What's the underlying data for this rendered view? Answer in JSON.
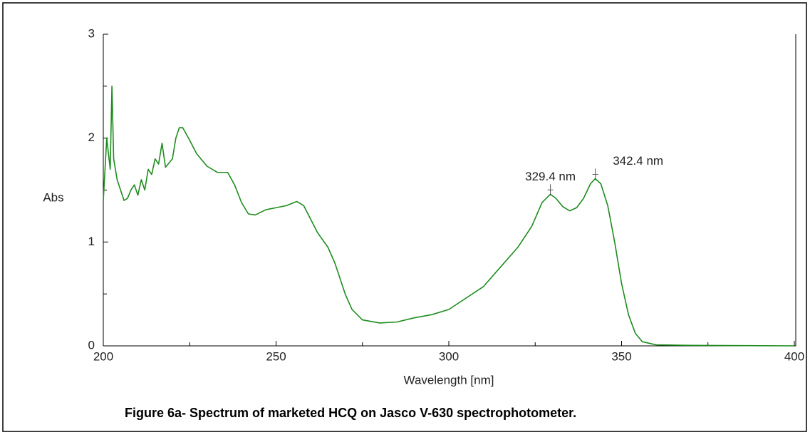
{
  "chart_data": {
    "type": "line",
    "caption": "Figure 6a- Spectrum of marketed HCQ on Jasco V-630 spectrophotometer.",
    "xlabel": "Wavelength [nm]",
    "ylabel": "Abs",
    "xlim": [
      200,
      400
    ],
    "xticks": [
      200,
      250,
      300,
      350,
      400
    ],
    "xminor_ticks": [
      225,
      275,
      325,
      375
    ],
    "ylim": [
      0,
      3
    ],
    "yticks": [
      0,
      1,
      2,
      3
    ],
    "yminor_ticks": [
      0.5,
      1.5,
      2.5
    ],
    "series": [
      {
        "color": "#1e8c1e",
        "x": [
          200,
          201,
          202,
          202.5,
          203,
          204,
          205,
          206,
          207,
          208,
          209,
          210,
          211,
          212,
          213,
          214,
          215,
          216,
          217,
          218,
          219,
          220,
          221,
          222,
          223,
          225,
          227,
          230,
          233,
          236,
          238,
          240,
          242,
          244,
          247,
          250,
          253,
          256,
          258,
          260,
          262,
          265,
          267,
          270,
          272,
          275,
          280,
          285,
          290,
          295,
          300,
          305,
          310,
          315,
          320,
          324,
          327,
          329.4,
          331,
          333,
          335,
          337,
          339,
          341,
          342.4,
          344,
          346,
          348,
          350,
          352,
          354,
          356,
          360,
          370,
          380,
          400
        ],
        "values": [
          1.4,
          2.0,
          1.7,
          2.5,
          1.8,
          1.6,
          1.5,
          1.4,
          1.42,
          1.5,
          1.55,
          1.45,
          1.6,
          1.5,
          1.7,
          1.65,
          1.8,
          1.75,
          1.95,
          1.72,
          1.76,
          1.8,
          2.0,
          2.1,
          2.1,
          1.98,
          1.85,
          1.73,
          1.67,
          1.67,
          1.55,
          1.38,
          1.27,
          1.26,
          1.31,
          1.33,
          1.35,
          1.39,
          1.35,
          1.22,
          1.09,
          0.95,
          0.8,
          0.5,
          0.35,
          0.25,
          0.22,
          0.23,
          0.27,
          0.3,
          0.35,
          0.46,
          0.57,
          0.76,
          0.95,
          1.15,
          1.38,
          1.46,
          1.42,
          1.34,
          1.3,
          1.33,
          1.42,
          1.56,
          1.61,
          1.56,
          1.35,
          1.0,
          0.6,
          0.3,
          0.12,
          0.04,
          0.01,
          0.005,
          0.003,
          0
        ]
      }
    ],
    "annotations": [
      {
        "text": "329.4 nm",
        "x": 329.4,
        "y": 1.46
      },
      {
        "text": "342.4 nm",
        "x": 342.4,
        "y": 1.61
      }
    ]
  }
}
